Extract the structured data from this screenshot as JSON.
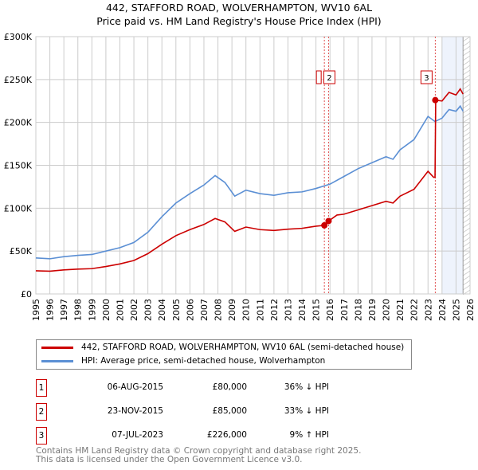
{
  "chart_data": {
    "type": "line",
    "title": "442, STAFFORD ROAD, WOLVERHAMPTON, WV10 6AL",
    "subtitle": "Price paid vs. HM Land Registry's House Price Index (HPI)",
    "xlim": [
      1995,
      2026
    ],
    "ylim": [
      0,
      300000
    ],
    "x_ticks": [
      "1995",
      "1996",
      "1997",
      "1998",
      "1999",
      "2000",
      "2001",
      "2002",
      "2003",
      "2004",
      "2005",
      "2006",
      "2007",
      "2008",
      "2009",
      "2010",
      "2011",
      "2012",
      "2013",
      "2014",
      "2015",
      "2016",
      "2017",
      "2018",
      "2019",
      "2020",
      "2021",
      "2022",
      "2023",
      "2024",
      "2025",
      "2026"
    ],
    "y_ticks": [
      {
        "v": 0,
        "l": "£0"
      },
      {
        "v": 50000,
        "l": "£50K"
      },
      {
        "v": 100000,
        "l": "£100K"
      },
      {
        "v": 150000,
        "l": "£150K"
      },
      {
        "v": 200000,
        "l": "£200K"
      },
      {
        "v": 250000,
        "l": "£250K"
      },
      {
        "v": 300000,
        "l": "£300K"
      }
    ],
    "grid": true,
    "series": [
      {
        "name": "442, STAFFORD ROAD, WOLVERHAMPTON, WV10 6AL (semi-detached house)",
        "color": "#cc0000",
        "x": [
          1995,
          1996,
          1997,
          1998,
          1999,
          2000,
          2001,
          2002,
          2003,
          2004,
          2005,
          2006,
          2007,
          2007.8,
          2008.5,
          2009.2,
          2010,
          2011,
          2012,
          2013,
          2014,
          2015,
          2015.6,
          2015.9,
          2016.5,
          2017,
          2018,
          2019,
          2020,
          2020.5,
          2021,
          2022,
          2023,
          2023.4,
          2023.5,
          2023.55,
          2024,
          2024.5,
          2025,
          2025.3,
          2025.5
        ],
        "y": [
          27000,
          26500,
          28000,
          29000,
          29500,
          32000,
          35000,
          39000,
          47000,
          58000,
          68000,
          75000,
          81000,
          88000,
          84000,
          73000,
          78000,
          75000,
          74000,
          75500,
          76500,
          79000,
          80000,
          85000,
          92000,
          93000,
          98000,
          103000,
          108000,
          106000,
          114000,
          122000,
          143000,
          136000,
          136000,
          226000,
          225000,
          235000,
          232000,
          239000,
          233000
        ]
      },
      {
        "name": "HPI: Average price, semi-detached house, Wolverhampton",
        "color": "#5b8fd4",
        "x": [
          1995,
          1996,
          1997,
          1998,
          1999,
          2000,
          2001,
          2002,
          2003,
          2004,
          2005,
          2006,
          2007,
          2007.8,
          2008.5,
          2009.2,
          2010,
          2011,
          2012,
          2013,
          2014,
          2015,
          2016,
          2017,
          2018,
          2019,
          2020,
          2020.5,
          2021,
          2022,
          2023,
          2023.5,
          2024,
          2024.5,
          2025,
          2025.3,
          2025.5
        ],
        "y": [
          42000,
          41000,
          43500,
          45000,
          46000,
          50000,
          54000,
          60000,
          72000,
          90000,
          106000,
          117000,
          127000,
          138000,
          130000,
          114000,
          121000,
          117000,
          115000,
          118000,
          119000,
          123000,
          128000,
          137000,
          146000,
          153000,
          160000,
          157000,
          168000,
          180000,
          207000,
          201000,
          205000,
          215000,
          213000,
          219000,
          213000
        ]
      }
    ],
    "sales": [
      {
        "n": "1",
        "x": 2015.6,
        "price": 80000
      },
      {
        "n": "2",
        "x": 2015.9,
        "price": 85000
      },
      {
        "n": "3",
        "x": 2023.52,
        "price": 226000
      }
    ],
    "shaded_from": 2024,
    "data_end": 2025.5
  },
  "legend": {
    "red": "442, STAFFORD ROAD, WOLVERHAMPTON, WV10 6AL (semi-detached house)",
    "blue": "HPI: Average price, semi-detached house, Wolverhampton"
  },
  "sales_table": [
    {
      "n": "1",
      "date": "06-AUG-2015",
      "price": "£80,000",
      "hpi": "36% ↓ HPI"
    },
    {
      "n": "2",
      "date": "23-NOV-2015",
      "price": "£85,000",
      "hpi": "33% ↓ HPI"
    },
    {
      "n": "3",
      "date": "07-JUL-2023",
      "price": "£226,000",
      "hpi": "9% ↑ HPI"
    }
  ],
  "footer": {
    "line1": "Contains HM Land Registry data © Crown copyright and database right 2025.",
    "line2": "This data is licensed under the Open Government Licence v3.0."
  }
}
